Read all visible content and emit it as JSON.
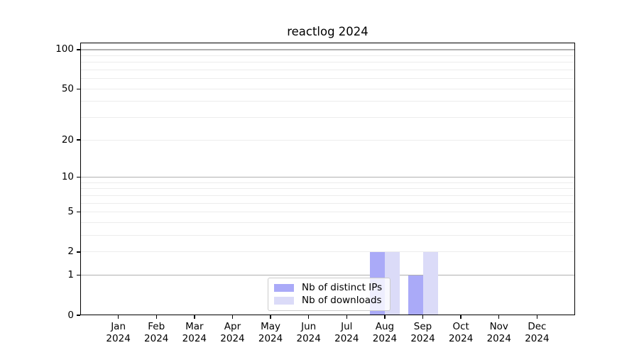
{
  "title": "reactlog 2024",
  "colors": {
    "distinct_ips": "#aaaaf8",
    "downloads": "#dbdbf8",
    "grid_major": "#b0b0b0",
    "grid_minor": "#ececec",
    "spine": "#000000",
    "legend_border": "#cccccc"
  },
  "legend": {
    "items": [
      {
        "label": "Nb of distinct IPs",
        "key": "distinct_ips"
      },
      {
        "label": "Nb of downloads",
        "key": "downloads"
      }
    ]
  },
  "chart_data": {
    "type": "bar",
    "title": "reactlog 2024",
    "categories": [
      "Jan 2024",
      "Feb 2024",
      "Mar 2024",
      "Apr 2024",
      "May 2024",
      "Jun 2024",
      "Jul 2024",
      "Aug 2024",
      "Sep 2024",
      "Oct 2024",
      "Nov 2024",
      "Dec 2024"
    ],
    "month_labels": [
      "Jan",
      "Feb",
      "Mar",
      "Apr",
      "May",
      "Jun",
      "Jul",
      "Aug",
      "Sep",
      "Oct",
      "Nov",
      "Dec"
    ],
    "year_label": "2024",
    "series": [
      {
        "name": "Nb of distinct IPs",
        "key": "distinct_ips",
        "values": [
          0,
          0,
          0,
          0,
          0,
          0,
          0,
          2,
          1,
          0,
          0,
          0
        ]
      },
      {
        "name": "Nb of downloads",
        "key": "downloads",
        "values": [
          0,
          0,
          0,
          0,
          0,
          0,
          0,
          2,
          2,
          0,
          0,
          0
        ]
      }
    ],
    "yscale": "log1p",
    "yticks": [
      0,
      1,
      2,
      5,
      10,
      20,
      50,
      100
    ],
    "ylim": [
      0,
      113
    ],
    "grid": "horizontal, major at powers of 10, minor at 2-9 per decade",
    "legend_position": "inside-bottom-center"
  }
}
